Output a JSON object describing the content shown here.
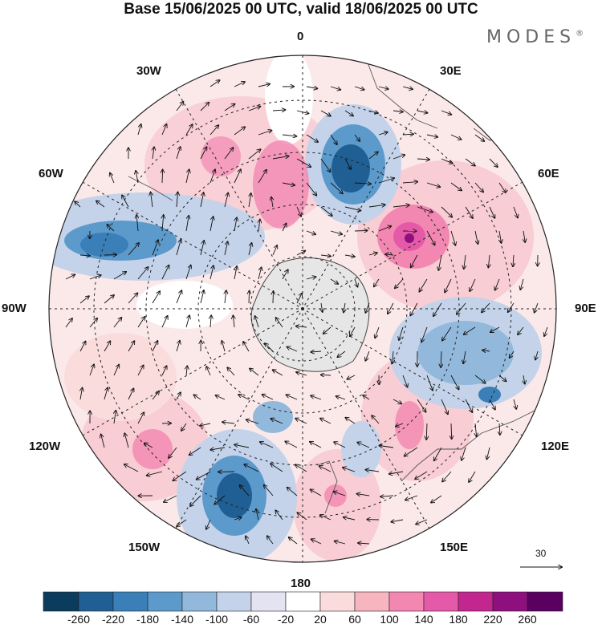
{
  "header": {
    "title": "Base 15/06/2025 00 UTC, valid 18/06/2025 00 UTC",
    "brand": "MODES",
    "brand_mark": "®"
  },
  "map": {
    "projection": "south polar stereographic",
    "longitude_labels": {
      "top": "0",
      "bottom": "180",
      "left": "90W",
      "right": "90E",
      "upper_left_1": "30W",
      "upper_left_2": "60W",
      "upper_right_1": "30E",
      "upper_right_2": "60E",
      "lower_left_1": "120W",
      "lower_left_2": "150W",
      "lower_right_1": "120E",
      "lower_right_2": "150E"
    },
    "reference_vector_label": "30",
    "colors": {
      "land": "#e6e6e6",
      "graticule": "#222222",
      "coast": "#444444"
    }
  },
  "colorbar": {
    "ticks": [
      "-260",
      "-220",
      "-180",
      "-140",
      "-100",
      "-60",
      "-20",
      "20",
      "60",
      "100",
      "140",
      "180",
      "220",
      "260"
    ],
    "colors": [
      "#0b3c5d",
      "#1f5f93",
      "#3a7fb8",
      "#5c9acb",
      "#92b8dc",
      "#c4d3ea",
      "#e4e3f1",
      "#ffffff",
      "#fbdcdc",
      "#f7b5c0",
      "#f287b2",
      "#e45aa8",
      "#c2278f",
      "#8e0f7e",
      "#5a0060"
    ]
  }
}
